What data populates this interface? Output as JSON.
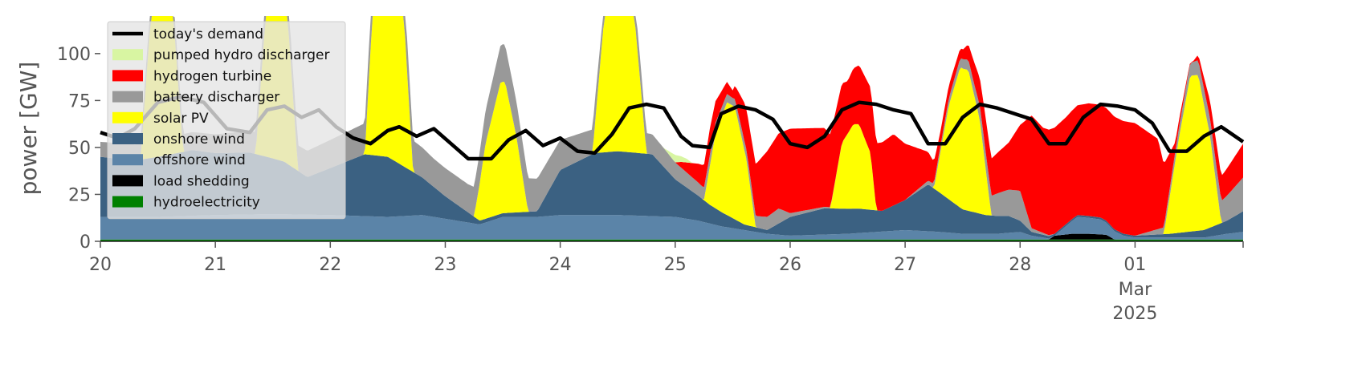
{
  "chart_data": {
    "type": "area",
    "ylabel": "power [GW]",
    "ylim": [
      0,
      120
    ],
    "y_ticks": [
      0,
      25,
      50,
      75,
      100
    ],
    "x_ticks": [
      {
        "day": 0,
        "label": "20"
      },
      {
        "day": 1,
        "label": "21"
      },
      {
        "day": 2,
        "label": "22"
      },
      {
        "day": 3,
        "label": "23"
      },
      {
        "day": 4,
        "label": "24"
      },
      {
        "day": 5,
        "label": "25"
      },
      {
        "day": 6,
        "label": "26"
      },
      {
        "day": 7,
        "label": "27"
      },
      {
        "day": 8,
        "label": "28"
      },
      {
        "day": 9,
        "label": "01",
        "sub1": "Mar",
        "sub2": "2025"
      }
    ],
    "xlim_days": [
      0,
      9.94
    ],
    "legend_placement": "upper-left",
    "legend": [
      {
        "label": "today's demand",
        "kind": "line",
        "color": "#000000"
      },
      {
        "label": "pumped hydro discharger",
        "kind": "patch",
        "color": "#d8f5a2"
      },
      {
        "label": "hydrogen turbine",
        "kind": "patch",
        "color": "#ff0000"
      },
      {
        "label": "battery discharger",
        "kind": "patch",
        "color": "#999999"
      },
      {
        "label": "solar PV",
        "kind": "patch",
        "color": "#ffff00"
      },
      {
        "label": "onshore wind",
        "kind": "patch",
        "color": "#3b6182"
      },
      {
        "label": "offshore wind",
        "kind": "patch",
        "color": "#5b84a8"
      },
      {
        "label": "load shedding",
        "kind": "patch",
        "color": "#000000"
      },
      {
        "label": "hydroelectricity",
        "kind": "patch",
        "color": "#008000"
      }
    ],
    "series": [
      {
        "name": "hydroelectricity",
        "color": "#008000",
        "points": [
          [
            0,
            1
          ],
          [
            3,
            1
          ],
          [
            6,
            1
          ],
          [
            9,
            1
          ],
          [
            9.94,
            1
          ]
        ]
      },
      {
        "name": "load shedding",
        "color": "#000000",
        "points": [
          [
            0,
            0
          ],
          [
            8.25,
            0
          ],
          [
            8.3,
            2
          ],
          [
            8.45,
            3
          ],
          [
            8.6,
            3
          ],
          [
            8.75,
            2.5
          ],
          [
            8.82,
            0
          ],
          [
            9.94,
            0
          ]
        ]
      },
      {
        "name": "offshore wind",
        "color": "#5b84a8",
        "points": [
          [
            0,
            12
          ],
          [
            0.5,
            12
          ],
          [
            1,
            13
          ],
          [
            1.5,
            13.5
          ],
          [
            2,
            13
          ],
          [
            2.5,
            12
          ],
          [
            2.8,
            13
          ],
          [
            3,
            11
          ],
          [
            3.3,
            8
          ],
          [
            3.5,
            12
          ],
          [
            3.8,
            12
          ],
          [
            4,
            13
          ],
          [
            4.5,
            13
          ],
          [
            5,
            12
          ],
          [
            5.2,
            10
          ],
          [
            5.4,
            7
          ],
          [
            5.6,
            5
          ],
          [
            5.8,
            3
          ],
          [
            6,
            2
          ],
          [
            6.5,
            3
          ],
          [
            7,
            5
          ],
          [
            7.3,
            4
          ],
          [
            7.5,
            3
          ],
          [
            7.8,
            3
          ],
          [
            8,
            4
          ],
          [
            8.1,
            2
          ],
          [
            8.3,
            0
          ],
          [
            8.5,
            9
          ],
          [
            8.7,
            8
          ],
          [
            8.9,
            2
          ],
          [
            9,
            1
          ],
          [
            9.3,
            1
          ],
          [
            9.6,
            1
          ],
          [
            9.8,
            3
          ],
          [
            9.94,
            4
          ]
        ]
      },
      {
        "name": "onshore wind",
        "color": "#3b6182",
        "points": [
          [
            0,
            32
          ],
          [
            0.3,
            30
          ],
          [
            0.5,
            32
          ],
          [
            0.8,
            35
          ],
          [
            1,
            33
          ],
          [
            1.3,
            33
          ],
          [
            1.6,
            28
          ],
          [
            1.8,
            20
          ],
          [
            2,
            25
          ],
          [
            2.3,
            33
          ],
          [
            2.5,
            32
          ],
          [
            2.8,
            20
          ],
          [
            3,
            12
          ],
          [
            3.3,
            2
          ],
          [
            3.5,
            2
          ],
          [
            3.8,
            3
          ],
          [
            4,
            24
          ],
          [
            4.3,
            33
          ],
          [
            4.5,
            34
          ],
          [
            4.8,
            33
          ],
          [
            5,
            20
          ],
          [
            5.3,
            10
          ],
          [
            5.6,
            3
          ],
          [
            5.8,
            2
          ],
          [
            6,
            10
          ],
          [
            6.3,
            14
          ],
          [
            6.6,
            13
          ],
          [
            6.8,
            11
          ],
          [
            7,
            16
          ],
          [
            7.2,
            25
          ],
          [
            7.5,
            13
          ],
          [
            7.7,
            10
          ],
          [
            7.9,
            9
          ],
          [
            8,
            6
          ],
          [
            8.1,
            2
          ],
          [
            8.3,
            1
          ],
          [
            8.5,
            1
          ],
          [
            8.8,
            1
          ],
          [
            9,
            1
          ],
          [
            9.3,
            2
          ],
          [
            9.6,
            4
          ],
          [
            9.8,
            7
          ],
          [
            9.94,
            11
          ]
        ]
      },
      {
        "name": "solar PV",
        "color": "#ffff00",
        "points": [
          [
            0,
            0
          ],
          [
            0.35,
            0
          ],
          [
            0.42,
            60
          ],
          [
            0.5,
            120
          ],
          [
            0.58,
            120
          ],
          [
            0.65,
            60
          ],
          [
            0.72,
            0
          ],
          [
            1.35,
            0
          ],
          [
            1.42,
            60
          ],
          [
            1.5,
            120
          ],
          [
            1.58,
            120
          ],
          [
            1.65,
            60
          ],
          [
            1.72,
            0
          ],
          [
            2.3,
            0
          ],
          [
            2.38,
            90
          ],
          [
            2.48,
            120
          ],
          [
            2.55,
            120
          ],
          [
            2.64,
            80
          ],
          [
            2.72,
            0
          ],
          [
            3.25,
            0
          ],
          [
            3.35,
            40
          ],
          [
            3.48,
            70
          ],
          [
            3.52,
            70
          ],
          [
            3.62,
            40
          ],
          [
            3.72,
            0
          ],
          [
            4.28,
            0
          ],
          [
            4.38,
            70
          ],
          [
            4.48,
            120
          ],
          [
            4.55,
            120
          ],
          [
            4.65,
            70
          ],
          [
            4.75,
            0
          ],
          [
            5.25,
            0
          ],
          [
            5.35,
            40
          ],
          [
            5.45,
            60
          ],
          [
            5.52,
            60
          ],
          [
            5.62,
            35
          ],
          [
            5.7,
            0
          ],
          [
            6.35,
            0
          ],
          [
            6.45,
            35
          ],
          [
            6.55,
            45
          ],
          [
            6.6,
            45
          ],
          [
            6.7,
            30
          ],
          [
            6.75,
            0
          ],
          [
            7.25,
            0
          ],
          [
            7.38,
            50
          ],
          [
            7.48,
            75
          ],
          [
            7.55,
            75
          ],
          [
            7.65,
            50
          ],
          [
            7.75,
            0
          ],
          [
            9.25,
            0
          ],
          [
            9.38,
            50
          ],
          [
            9.48,
            83
          ],
          [
            9.55,
            83
          ],
          [
            9.65,
            50
          ],
          [
            9.75,
            0
          ],
          [
            9.94,
            0
          ]
        ]
      },
      {
        "name": "battery discharger",
        "color": "#999999",
        "points": [
          [
            0,
            8
          ],
          [
            1,
            10
          ],
          [
            2,
            15
          ],
          [
            2.6,
            18
          ],
          [
            2.9,
            15
          ],
          [
            3.2,
            15
          ],
          [
            3.5,
            20
          ],
          [
            3.7,
            18
          ],
          [
            4,
            16
          ],
          [
            4.3,
            13
          ],
          [
            4.5,
            0
          ],
          [
            4.6,
            12
          ],
          [
            4.9,
            10
          ],
          [
            5.1,
            8
          ],
          [
            5.3,
            6
          ],
          [
            5.5,
            4
          ],
          [
            5.7,
            6
          ],
          [
            5.9,
            8
          ],
          [
            6,
            2
          ],
          [
            6.5,
            0
          ],
          [
            7,
            0
          ],
          [
            7.6,
            6
          ],
          [
            7.8,
            12
          ],
          [
            8,
            16
          ],
          [
            8.1,
            2
          ],
          [
            8.3,
            0
          ],
          [
            9,
            0
          ],
          [
            9.7,
            10
          ],
          [
            9.94,
            18
          ]
        ]
      },
      {
        "name": "hydrogen turbine",
        "color": "#ff0000",
        "points": [
          [
            0,
            0
          ],
          [
            5,
            0
          ],
          [
            5.05,
            3
          ],
          [
            5.2,
            10
          ],
          [
            5.3,
            14
          ],
          [
            5.5,
            4
          ],
          [
            5.6,
            20
          ],
          [
            5.8,
            35
          ],
          [
            6,
            45
          ],
          [
            6.3,
            42
          ],
          [
            6.5,
            28
          ],
          [
            6.7,
            35
          ],
          [
            6.9,
            38
          ],
          [
            7,
            30
          ],
          [
            7.3,
            8
          ],
          [
            7.5,
            5
          ],
          [
            7.7,
            18
          ],
          [
            7.9,
            25
          ],
          [
            8,
            35
          ],
          [
            8.1,
            60
          ],
          [
            8.2,
            56
          ],
          [
            8.4,
            57
          ],
          [
            8.6,
            60
          ],
          [
            8.8,
            60
          ],
          [
            9,
            60
          ],
          [
            9.2,
            48
          ],
          [
            9.35,
            5
          ],
          [
            9.5,
            0
          ],
          [
            9.7,
            12
          ],
          [
            9.94,
            18
          ]
        ]
      },
      {
        "name": "pumped hydro discharger",
        "color": "#d8f5a2",
        "points": [
          [
            0,
            0
          ],
          [
            4.9,
            0
          ],
          [
            5.0,
            4
          ],
          [
            5.1,
            2
          ],
          [
            5.15,
            0
          ],
          [
            9.94,
            0
          ]
        ]
      }
    ],
    "demand": {
      "name": "today's demand",
      "color": "#000000",
      "points": [
        [
          0,
          58
        ],
        [
          0.15,
          55
        ],
        [
          0.3,
          60
        ],
        [
          0.5,
          74
        ],
        [
          0.7,
          77
        ],
        [
          0.9,
          74
        ],
        [
          1.1,
          60
        ],
        [
          1.3,
          58
        ],
        [
          1.45,
          70
        ],
        [
          1.6,
          72
        ],
        [
          1.75,
          66
        ],
        [
          1.9,
          70
        ],
        [
          2.05,
          61
        ],
        [
          2.2,
          55
        ],
        [
          2.35,
          52
        ],
        [
          2.5,
          59
        ],
        [
          2.6,
          61
        ],
        [
          2.75,
          56
        ],
        [
          2.9,
          60
        ],
        [
          3.05,
          52
        ],
        [
          3.2,
          44
        ],
        [
          3.4,
          44
        ],
        [
          3.55,
          54
        ],
        [
          3.7,
          59
        ],
        [
          3.85,
          51
        ],
        [
          4.0,
          55
        ],
        [
          4.15,
          48
        ],
        [
          4.3,
          47
        ],
        [
          4.45,
          57
        ],
        [
          4.6,
          71
        ],
        [
          4.75,
          73
        ],
        [
          4.9,
          71
        ],
        [
          5.05,
          56
        ],
        [
          5.15,
          51
        ],
        [
          5.3,
          50
        ],
        [
          5.4,
          68
        ],
        [
          5.55,
          72
        ],
        [
          5.7,
          70
        ],
        [
          5.85,
          65
        ],
        [
          6.0,
          52
        ],
        [
          6.15,
          50
        ],
        [
          6.3,
          56
        ],
        [
          6.45,
          70
        ],
        [
          6.6,
          74
        ],
        [
          6.75,
          73
        ],
        [
          6.9,
          70
        ],
        [
          7.05,
          68
        ],
        [
          7.2,
          52
        ],
        [
          7.35,
          52
        ],
        [
          7.5,
          66
        ],
        [
          7.65,
          73
        ],
        [
          7.8,
          71
        ],
        [
          7.95,
          68
        ],
        [
          8.1,
          65
        ],
        [
          8.25,
          52
        ],
        [
          8.4,
          52
        ],
        [
          8.55,
          66
        ],
        [
          8.7,
          73
        ],
        [
          8.85,
          72
        ],
        [
          9.0,
          70
        ],
        [
          9.15,
          63
        ],
        [
          9.3,
          48
        ],
        [
          9.45,
          48
        ],
        [
          9.6,
          56
        ],
        [
          9.75,
          61
        ],
        [
          9.94,
          53
        ]
      ]
    }
  }
}
